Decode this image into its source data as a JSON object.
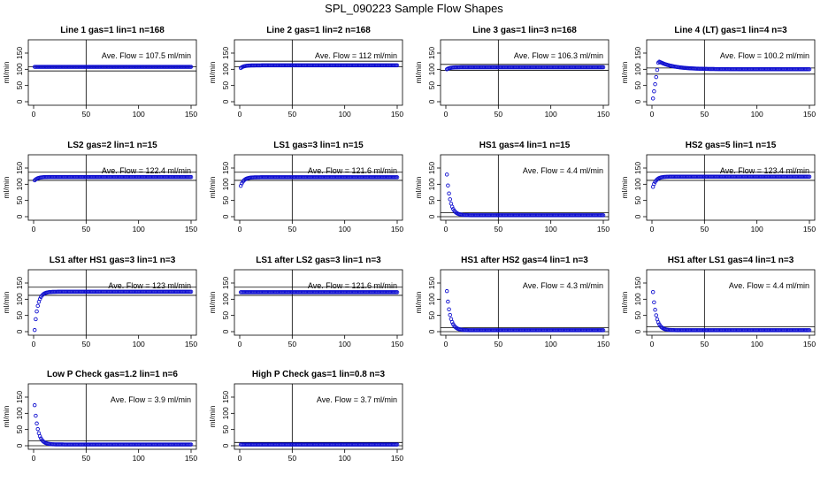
{
  "title": "SPL_090223  Sample Flow Shapes",
  "chart_data": [
    {
      "type": "scatter",
      "title": "Line 1 gas=1 lin=1 n=168",
      "ylabel": "ml/min",
      "annotation": "Ave. Flow =  107.5  ml/min",
      "xticks": [
        "0",
        "50",
        "100",
        "150"
      ],
      "yticks": [
        "0",
        "50",
        "100",
        "150"
      ],
      "xlim": [
        0,
        150
      ],
      "ylim": [
        0,
        180
      ],
      "hlines": [
        95,
        108
      ],
      "vline": 50,
      "shape": "flat",
      "level": 107.5
    },
    {
      "type": "scatter",
      "title": "Line 2 gas=1 lin=2 n=168",
      "ylabel": "ml/min",
      "annotation": "Ave. Flow =  112  ml/min",
      "xticks": [
        "0",
        "50",
        "100",
        "150"
      ],
      "yticks": [
        "0",
        "50",
        "100",
        "150"
      ],
      "xlim": [
        0,
        150
      ],
      "ylim": [
        0,
        180
      ],
      "hlines": [
        108,
        125
      ],
      "vline": 50,
      "shape": "ramp",
      "level": 112,
      "start": 104
    },
    {
      "type": "scatter",
      "title": "Line 3 gas=1 lin=3 n=168",
      "ylabel": "ml/min",
      "annotation": "Ave. Flow =  106.3  ml/min",
      "xticks": [
        "0",
        "50",
        "100",
        "150"
      ],
      "yticks": [
        "0",
        "50",
        "100",
        "150"
      ],
      "xlim": [
        0,
        150
      ],
      "ylim": [
        0,
        180
      ],
      "hlines": [
        97,
        115
      ],
      "vline": 50,
      "shape": "ramp",
      "level": 106.3,
      "start": 100
    },
    {
      "type": "scatter",
      "title": "Line 4 (LT) gas=1 lin=4 n=3",
      "ylabel": "ml/min",
      "annotation": "Ave. Flow =  100.2  ml/min",
      "xticks": [
        "0",
        "50",
        "100",
        "150"
      ],
      "yticks": [
        "0",
        "50",
        "100",
        "150"
      ],
      "xlim": [
        0,
        150
      ],
      "ylim": [
        0,
        180
      ],
      "hlines": [
        85,
        104
      ],
      "vline": 50,
      "shape": "overshoot",
      "level": 100.2
    },
    {
      "type": "scatter",
      "title": "LS2 gas=2 lin=1 n=15",
      "ylabel": "ml/min",
      "annotation": "Ave. Flow =  122.4  ml/min",
      "xticks": [
        "0",
        "50",
        "100",
        "150"
      ],
      "yticks": [
        "0",
        "50",
        "100",
        "150"
      ],
      "xlim": [
        0,
        150
      ],
      "ylim": [
        0,
        180
      ],
      "hlines": [
        112,
        137
      ],
      "vline": 50,
      "shape": "ramp",
      "level": 122.4,
      "start": 112
    },
    {
      "type": "scatter",
      "title": "LS1 gas=3 lin=1 n=15",
      "ylabel": "ml/min",
      "annotation": "Ave. Flow =  121.6  ml/min",
      "xticks": [
        "0",
        "50",
        "100",
        "150"
      ],
      "yticks": [
        "0",
        "50",
        "100",
        "150"
      ],
      "xlim": [
        0,
        150
      ],
      "ylim": [
        0,
        180
      ],
      "hlines": [
        112,
        137
      ],
      "vline": 50,
      "shape": "ramp",
      "level": 121.6,
      "start": 95
    },
    {
      "type": "scatter",
      "title": "HS1 gas=4 lin=1 n=15",
      "ylabel": "ml/min",
      "annotation": "Ave. Flow =  4.4  ml/min",
      "xticks": [
        "0",
        "50",
        "100",
        "150"
      ],
      "yticks": [
        "0",
        "50",
        "100",
        "150"
      ],
      "xlim": [
        0,
        150
      ],
      "ylim": [
        0,
        180
      ],
      "hlines": [
        0,
        12
      ],
      "vline": 50,
      "shape": "decay",
      "level": 4.4,
      "start": 130
    },
    {
      "type": "scatter",
      "title": "HS2 gas=5 lin=1 n=15",
      "ylabel": "ml/min",
      "annotation": "Ave. Flow =  123.4  ml/min",
      "xticks": [
        "0",
        "50",
        "100",
        "150"
      ],
      "yticks": [
        "0",
        "50",
        "100",
        "150"
      ],
      "xlim": [
        0,
        150
      ],
      "ylim": [
        0,
        180
      ],
      "hlines": [
        112,
        137
      ],
      "vline": 50,
      "shape": "ramp",
      "level": 123.4,
      "start": 92
    },
    {
      "type": "scatter",
      "title": "LS1 after HS1 gas=3 lin=1 n=3",
      "ylabel": "ml/min",
      "annotation": "Ave. Flow =  123  ml/min",
      "xticks": [
        "0",
        "50",
        "100",
        "150"
      ],
      "yticks": [
        "0",
        "50",
        "100",
        "150"
      ],
      "xlim": [
        0,
        150
      ],
      "ylim": [
        0,
        180
      ],
      "hlines": [
        112,
        137
      ],
      "vline": 50,
      "shape": "rise",
      "level": 123,
      "start": 5
    },
    {
      "type": "scatter",
      "title": "LS1 after LS2 gas=3 lin=1 n=3",
      "ylabel": "ml/min",
      "annotation": "Ave. Flow =  121.6  ml/min",
      "xticks": [
        "0",
        "50",
        "100",
        "150"
      ],
      "yticks": [
        "0",
        "50",
        "100",
        "150"
      ],
      "xlim": [
        0,
        150
      ],
      "ylim": [
        0,
        180
      ],
      "hlines": [
        112,
        137
      ],
      "vline": 50,
      "shape": "flat",
      "level": 121.6
    },
    {
      "type": "scatter",
      "title": "HS1 after HS2 gas=4 lin=1 n=3",
      "ylabel": "ml/min",
      "annotation": "Ave. Flow =  4.3  ml/min",
      "xticks": [
        "0",
        "50",
        "100",
        "150"
      ],
      "yticks": [
        "0",
        "50",
        "100",
        "150"
      ],
      "xlim": [
        0,
        150
      ],
      "ylim": [
        0,
        180
      ],
      "hlines": [
        0,
        12
      ],
      "vline": 50,
      "shape": "decay",
      "level": 4.3,
      "start": 125
    },
    {
      "type": "scatter",
      "title": "HS1 after LS1 gas=4 lin=1 n=3",
      "ylabel": "ml/min",
      "annotation": "Ave. Flow =  4.4  ml/min",
      "xticks": [
        "0",
        "50",
        "100",
        "150"
      ],
      "yticks": [
        "0",
        "50",
        "100",
        "150"
      ],
      "xlim": [
        0,
        150
      ],
      "ylim": [
        0,
        180
      ],
      "hlines": [
        0,
        15
      ],
      "vline": 50,
      "shape": "decay",
      "level": 4.4,
      "start": 122
    },
    {
      "type": "scatter",
      "title": "Low P Check gas=1.2 lin=1 n=6",
      "ylabel": "ml/min",
      "annotation": "Ave. Flow =  3.9  ml/min",
      "xticks": [
        "0",
        "50",
        "100",
        "150"
      ],
      "yticks": [
        "0",
        "50",
        "100",
        "150"
      ],
      "xlim": [
        0,
        150
      ],
      "ylim": [
        0,
        180
      ],
      "hlines": [
        0,
        15
      ],
      "vline": 50,
      "shape": "decay",
      "level": 3.9,
      "start": 125
    },
    {
      "type": "scatter",
      "title": "High P Check gas=1 lin=0.8 n=3",
      "ylabel": "ml/min",
      "annotation": "Ave. Flow =  3.7  ml/min",
      "xticks": [
        "0",
        "50",
        "100",
        "150"
      ],
      "yticks": [
        "0",
        "50",
        "100",
        "150"
      ],
      "xlim": [
        0,
        150
      ],
      "ylim": [
        0,
        180
      ],
      "hlines": [
        0,
        10
      ],
      "vline": 50,
      "shape": "flat",
      "level": 3.7
    }
  ]
}
